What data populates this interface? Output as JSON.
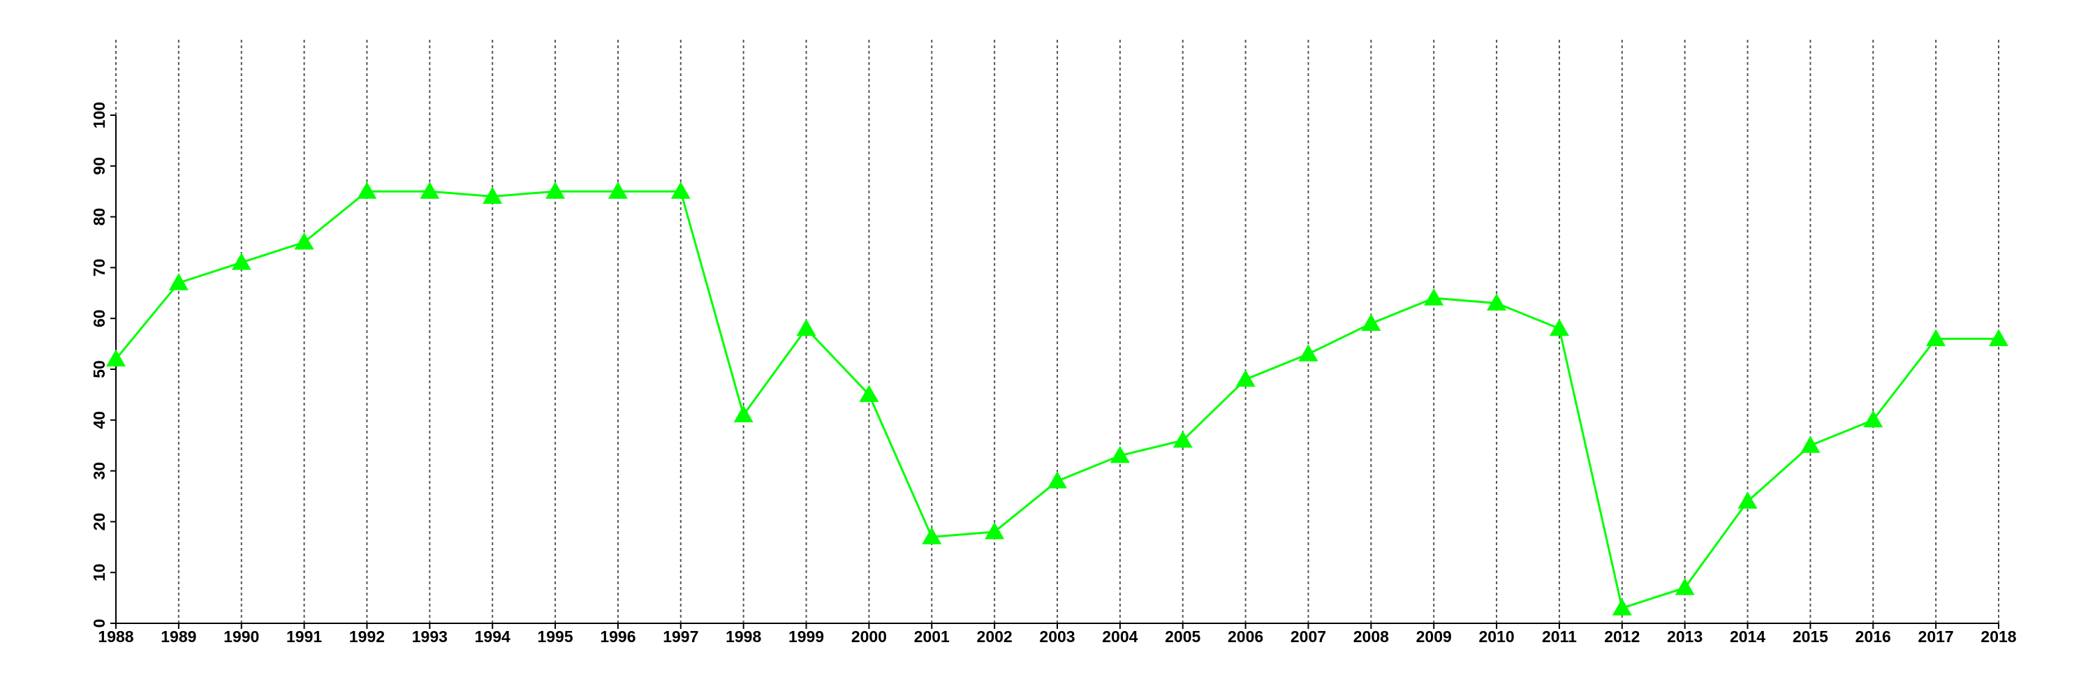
{
  "chart_data": {
    "type": "line",
    "x": [
      1988,
      1989,
      1990,
      1991,
      1992,
      1993,
      1994,
      1995,
      1996,
      1997,
      1998,
      1999,
      2000,
      2001,
      2002,
      2003,
      2004,
      2005,
      2006,
      2007,
      2008,
      2009,
      2010,
      2011,
      2012,
      2013,
      2014,
      2015,
      2016,
      2017,
      2018
    ],
    "values": [
      52,
      67,
      71,
      75,
      85,
      85,
      84,
      85,
      85,
      85,
      41,
      58,
      45,
      17,
      18,
      28,
      33,
      36,
      48,
      53,
      59,
      64,
      63,
      58,
      3,
      7,
      24,
      35,
      40,
      56,
      56
    ],
    "color": "#00ff00",
    "marker": "triangle",
    "xlim": [
      1988,
      2018
    ],
    "xticks": [
      1988,
      1989,
      1990,
      1991,
      1992,
      1993,
      1994,
      1995,
      1996,
      1997,
      1998,
      1999,
      2000,
      2001,
      2002,
      2003,
      2004,
      2005,
      2006,
      2007,
      2008,
      2009,
      2010,
      2011,
      2012,
      2013,
      2014,
      2015,
      2016,
      2017,
      2018
    ],
    "ylim": [
      0,
      100
    ],
    "yticks": [
      0,
      10,
      20,
      30,
      40,
      50,
      60,
      70,
      80,
      90,
      100
    ],
    "grid": true
  }
}
